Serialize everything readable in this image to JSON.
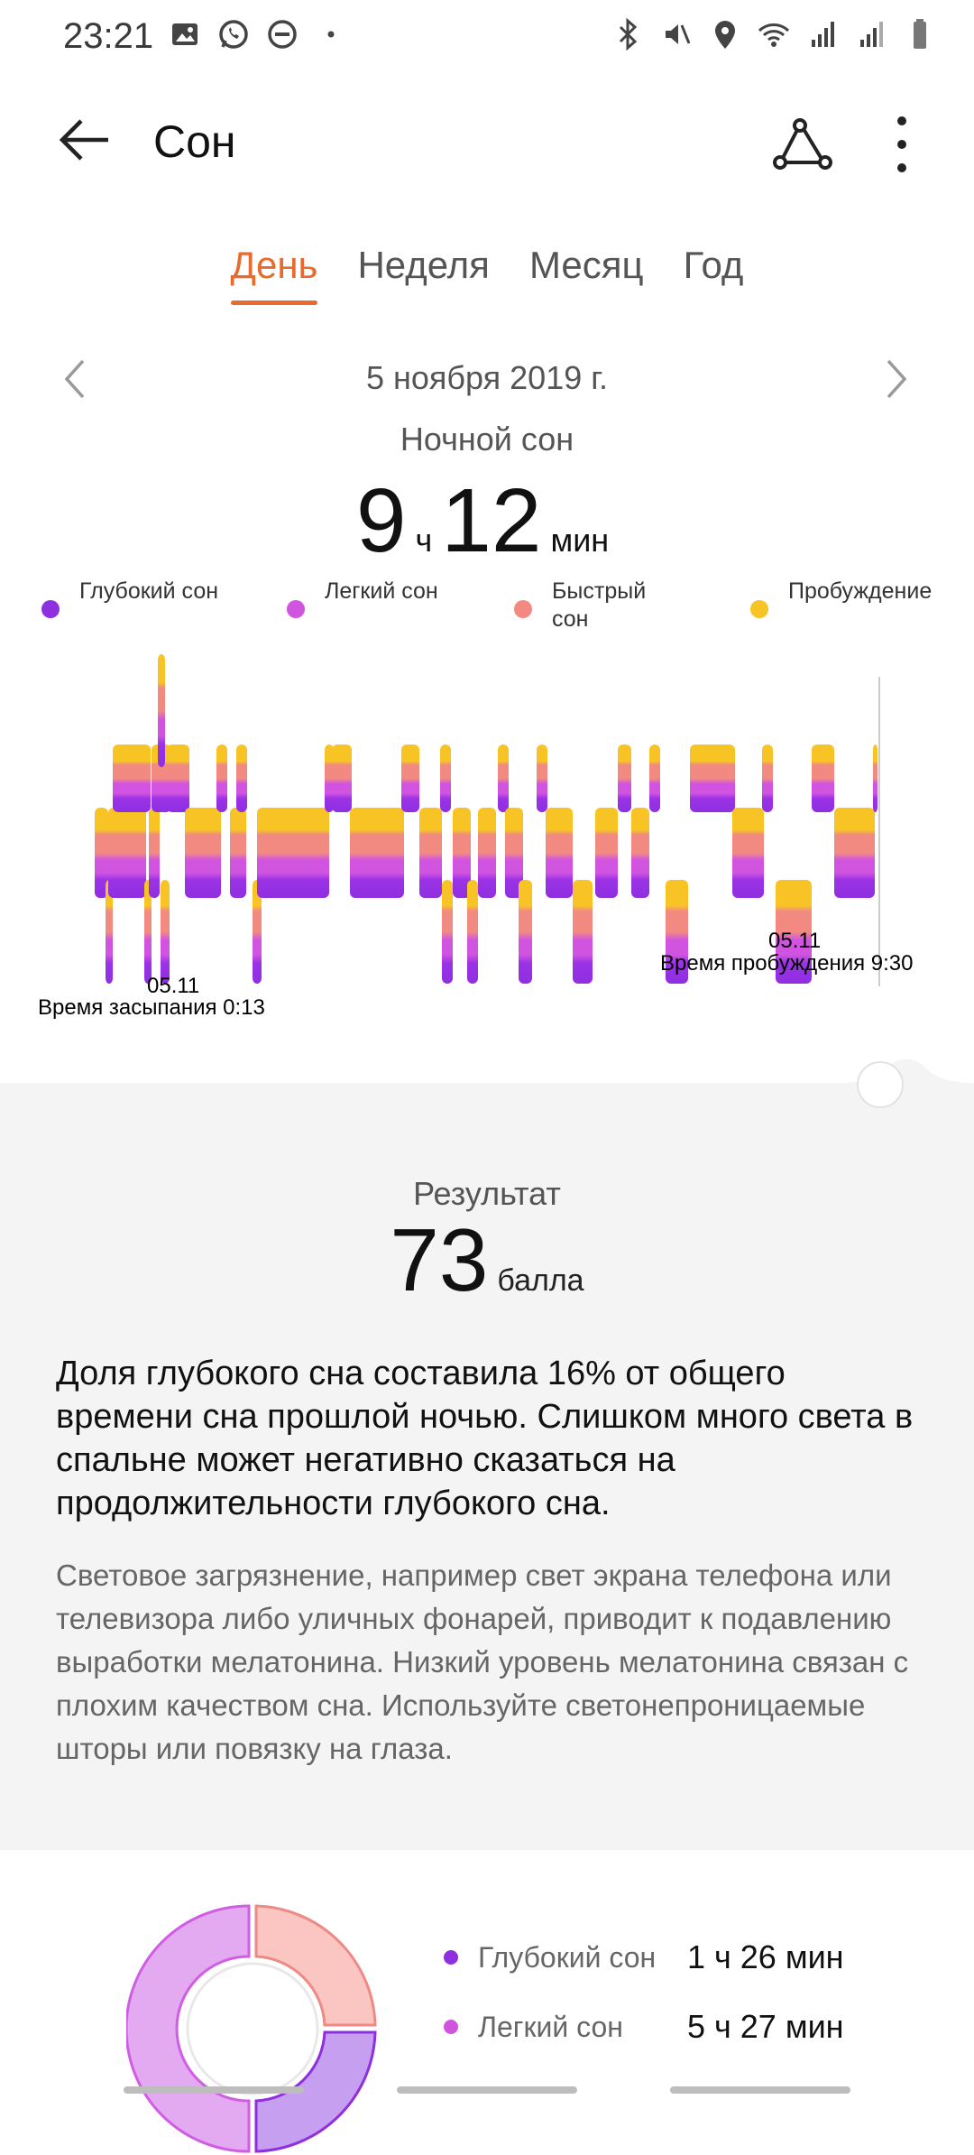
{
  "status_bar": {
    "time": "23:21"
  },
  "header": {
    "title": "Сон"
  },
  "tabs": [
    {
      "label": "День",
      "active": true
    },
    {
      "label": "Неделя",
      "active": false
    },
    {
      "label": "Месяц",
      "active": false
    },
    {
      "label": "Год",
      "active": false
    }
  ],
  "date": "5 ноября 2019 г.",
  "summary": {
    "label": "Ночной сон",
    "hours": "9",
    "hours_unit": "ч",
    "minutes": "12",
    "minutes_unit": "мин"
  },
  "legend": [
    {
      "label": "Глубокий сон",
      "color": "#8e2fe0"
    },
    {
      "label": "Легкий сон",
      "color": "#d154e0"
    },
    {
      "label": "Быстрый сон",
      "color": "#f28a82"
    },
    {
      "label": "Пробуждение",
      "color": "#f7c325"
    }
  ],
  "chart_data": {
    "type": "sleep-stages",
    "start_date": "05.11",
    "start_label": "Время засыпания 0:13",
    "end_date": "05.11",
    "end_label": "Время пробуждения 9:30"
  },
  "score": {
    "label": "Результат",
    "value": "73",
    "unit": "балла"
  },
  "advice": {
    "title": "Доля глубокого сна составила 16% от общего времени сна прошлой ночью. Слишком много света в спальне может негативно сказаться на продолжительности глубокого сна.",
    "text": "Световое загрязнение, например свет экрана телефона или телевизора либо уличных фонарей, приводит к подавлению выработки мелатонина. Низкий уровень мелатонина связан с плохим качеством сна. Используйте светонепроницаемые шторы или повязку на глаза."
  },
  "breakdown": [
    {
      "label": "Глубокий сон",
      "value": "1 ч 26 мин",
      "color": "#8e2fe0"
    },
    {
      "label": "Легкий сон",
      "value": "5 ч 27 мин",
      "color": "#d154e0"
    }
  ]
}
